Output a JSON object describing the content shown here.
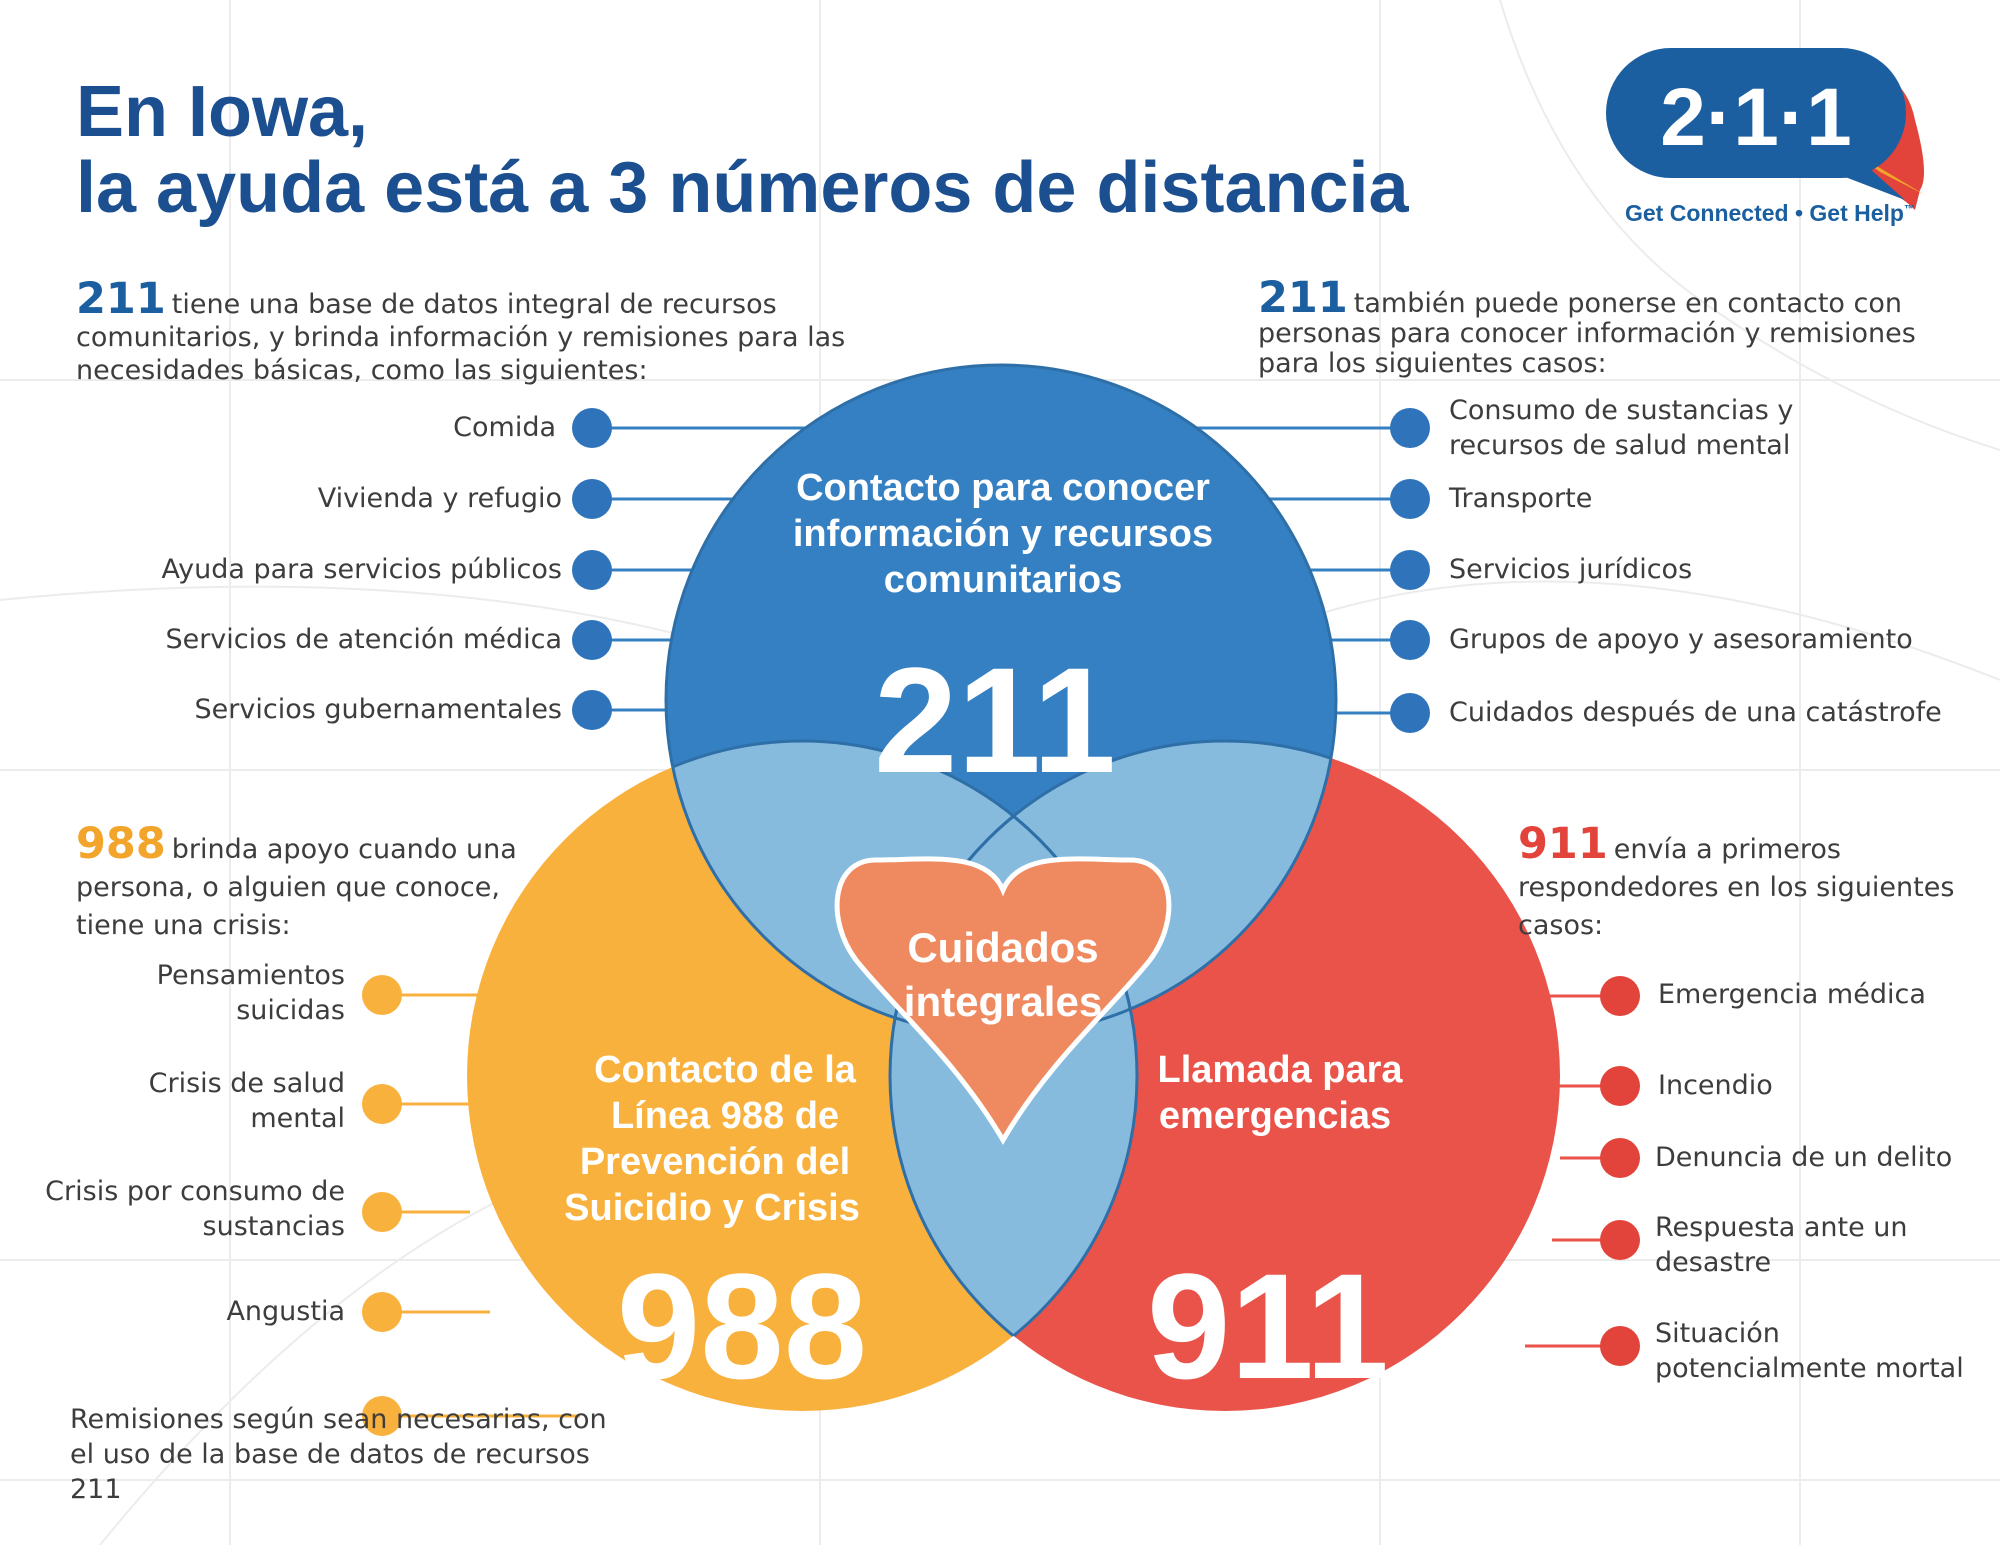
{
  "title": {
    "line1": "En Iowa,",
    "line2": "la ayuda está a 3 números de distancia"
  },
  "logo": {
    "number": "2·1·1",
    "tagline": "Get Connected • Get Help",
    "trademark": "™",
    "colors": {
      "bubble": "#1b5fa0",
      "accent_red": "#e2433a",
      "accent_orange": "#f2a52a"
    }
  },
  "intro_211_left": {
    "number": "211",
    "text": "tiene una base de datos integral de recursos comunitarios, y brinda información y remisiones para las necesidades básicas, como las siguientes:"
  },
  "intro_211_right": {
    "number": "211",
    "text": "también puede ponerse en contacto con personas para conocer información y remisiones para los siguientes casos:"
  },
  "intro_988": {
    "number": "988",
    "text": "brinda apoyo cuando una persona, o alguien que conoce, tiene una crisis:"
  },
  "intro_911": {
    "number": "911",
    "text": "envía a primeros respondedores en los siguientes casos:"
  },
  "list_211_left": [
    "Comida",
    "Vivienda y refugio",
    "Ayuda para servicios públicos",
    "Servicios de atención médica",
    "Servicios gubernamentales"
  ],
  "list_211_right": [
    "Consumo de sustancias y recursos de salud mental",
    "Transporte",
    "Servicios jurídicos",
    "Grupos de apoyo y asesoramiento",
    "Cuidados después de una catástrofe"
  ],
  "list_988": [
    "Pensamientos suicidas",
    "Crisis de salud mental",
    "Crisis por consumo de sustancias",
    "Angustia",
    "Remisiones según sean necesarias, con el uso de la base de datos de recursos 211"
  ],
  "list_911": [
    "Emergencia médica",
    "Incendio",
    "Denuncia de un delito",
    "Respuesta ante un desastre",
    "Situación potencialmente mortal"
  ],
  "circles": {
    "c211": {
      "label_lines": [
        "Contacto para conocer",
        "información y recursos",
        "comunitarios"
      ],
      "number": "211",
      "color": "#3580c2"
    },
    "c988": {
      "label_lines": [
        "Contacto de la",
        "Línea 988 de",
        "Prevención del",
        "Suicidio y Crisis"
      ],
      "number": "988",
      "color": "#f9b13e"
    },
    "c911": {
      "label_lines": [
        "Llamada para",
        "emergencias"
      ],
      "number": "911",
      "color": "#e9534a"
    },
    "overlap_color": "#86bbdd"
  },
  "heart": {
    "label_lines": [
      "Cuidados",
      "integrales"
    ],
    "color": "#ef8a60"
  }
}
